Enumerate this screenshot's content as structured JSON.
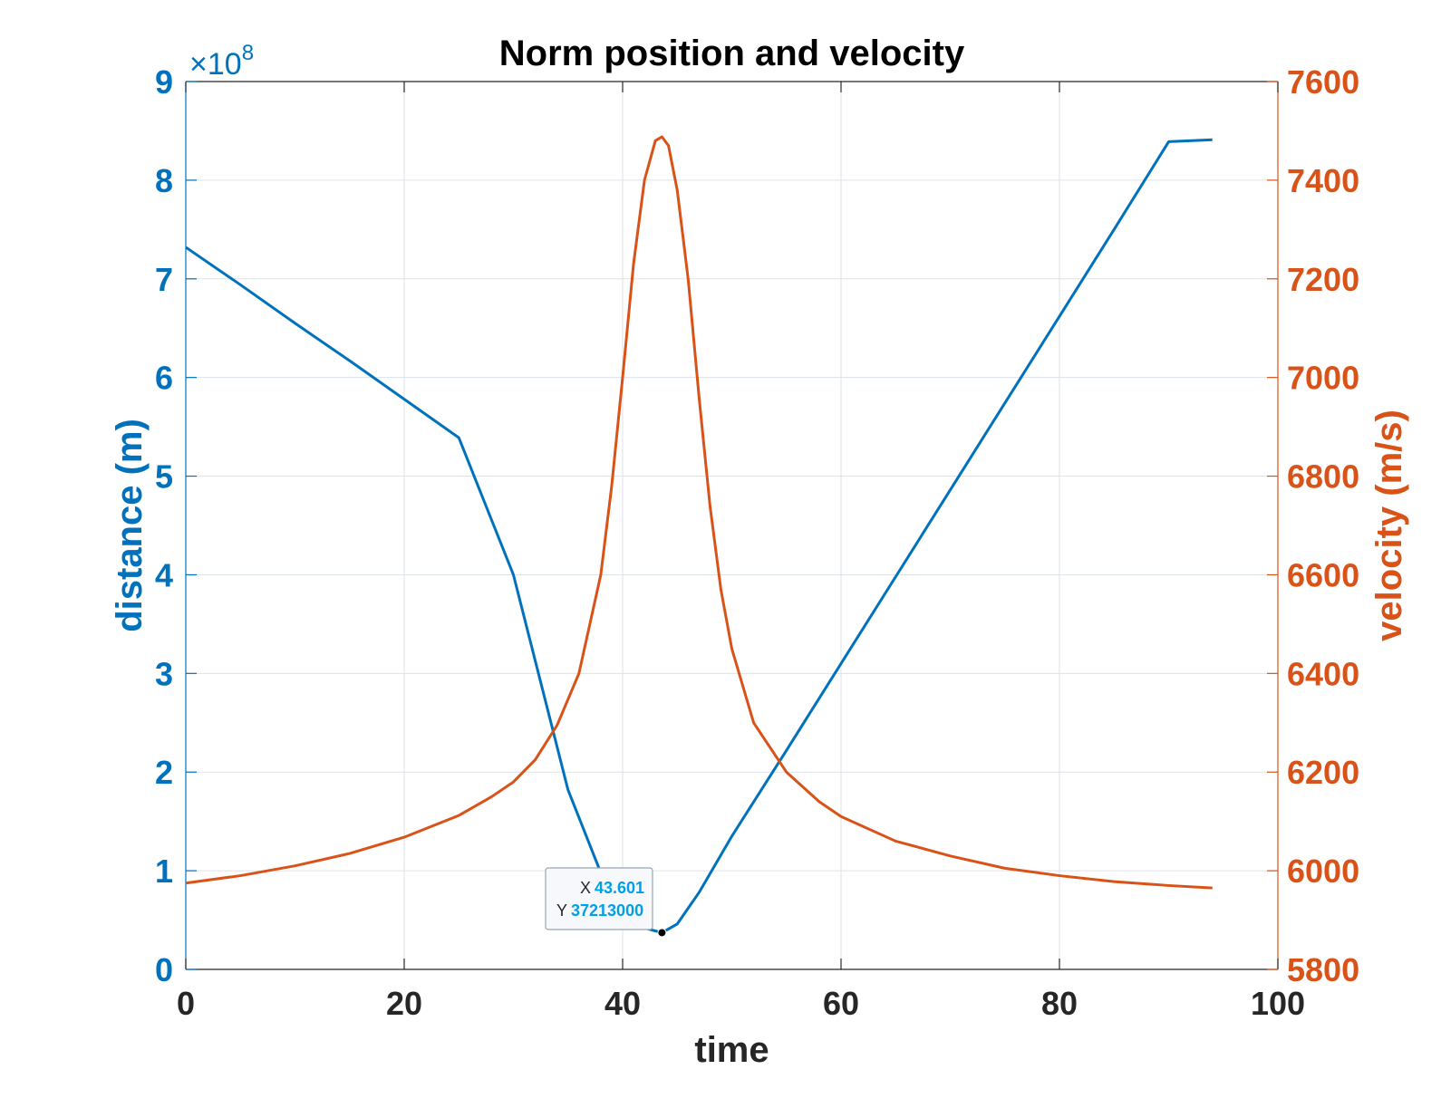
{
  "chart_data": {
    "type": "line",
    "title": "Norm position and velocity",
    "xlabel": "time",
    "xlim": [
      0,
      100
    ],
    "xticks": [
      0,
      20,
      40,
      60,
      80,
      100
    ],
    "grid": true,
    "left_axis": {
      "label": "distance (m)",
      "exponent_label": "×10",
      "exponent": "8",
      "ylim": [
        0,
        9
      ],
      "ticks": [
        0,
        1,
        2,
        3,
        4,
        5,
        6,
        7,
        8,
        9
      ],
      "color": "#0072BD"
    },
    "right_axis": {
      "label": "velocity (m/s)",
      "ylim": [
        5800,
        7600
      ],
      "ticks": [
        5800,
        6000,
        6200,
        6400,
        6600,
        6800,
        7000,
        7200,
        7400,
        7600
      ],
      "color": "#D95319"
    },
    "series": [
      {
        "axis": "left",
        "color": "#0072BD",
        "points": [
          [
            0,
            7.32
          ],
          [
            5,
            6.94
          ],
          [
            10,
            6.55
          ],
          [
            15,
            6.17
          ],
          [
            20,
            5.78
          ],
          [
            25,
            5.39
          ],
          [
            30,
            4.0
          ],
          [
            35,
            1.82
          ],
          [
            38,
            0.98
          ],
          [
            40,
            0.62
          ],
          [
            42,
            0.42
          ],
          [
            43.601,
            0.372
          ],
          [
            45,
            0.46
          ],
          [
            47,
            0.78
          ],
          [
            50,
            1.35
          ],
          [
            55,
            2.22
          ],
          [
            60,
            3.1
          ],
          [
            65,
            3.98
          ],
          [
            70,
            4.86
          ],
          [
            75,
            5.74
          ],
          [
            80,
            6.62
          ],
          [
            85,
            7.5
          ],
          [
            90,
            8.39
          ],
          [
            94,
            8.41
          ]
        ]
      },
      {
        "axis": "right",
        "color": "#D95319",
        "points": [
          [
            0,
            5975
          ],
          [
            5,
            5990
          ],
          [
            10,
            6010
          ],
          [
            15,
            6035
          ],
          [
            20,
            6068
          ],
          [
            25,
            6112
          ],
          [
            28,
            6150
          ],
          [
            30,
            6180
          ],
          [
            32,
            6225
          ],
          [
            34,
            6295
          ],
          [
            36,
            6400
          ],
          [
            38,
            6600
          ],
          [
            39,
            6780
          ],
          [
            40,
            7000
          ],
          [
            41,
            7230
          ],
          [
            42,
            7400
          ],
          [
            43,
            7480
          ],
          [
            43.6,
            7488
          ],
          [
            44.2,
            7470
          ],
          [
            45,
            7380
          ],
          [
            46,
            7200
          ],
          [
            47,
            6960
          ],
          [
            48,
            6740
          ],
          [
            49,
            6570
          ],
          [
            50,
            6450
          ],
          [
            52,
            6300
          ],
          [
            55,
            6200
          ],
          [
            58,
            6140
          ],
          [
            60,
            6110
          ],
          [
            65,
            6060
          ],
          [
            70,
            6030
          ],
          [
            75,
            6005
          ],
          [
            80,
            5990
          ],
          [
            85,
            5978
          ],
          [
            90,
            5970
          ],
          [
            94,
            5965
          ]
        ]
      }
    ],
    "datatip": {
      "x": 43.601,
      "y": 37213000,
      "x_label": "X",
      "y_label": "Y",
      "x_text": "43.601",
      "y_text": "37213000"
    }
  }
}
